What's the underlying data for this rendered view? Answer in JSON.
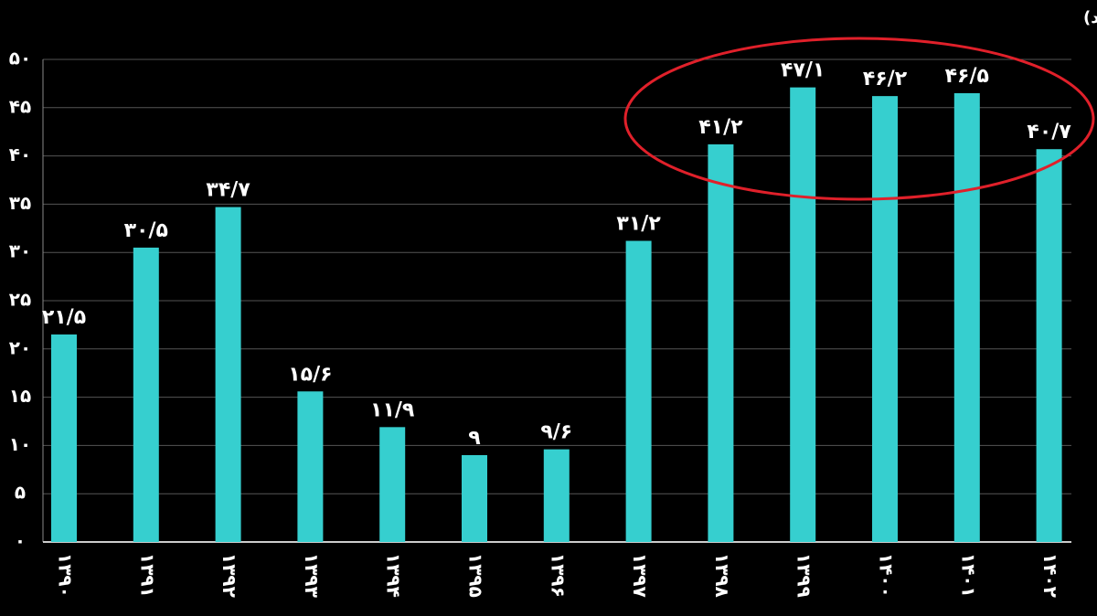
{
  "chart_data": {
    "type": "bar",
    "subtitle": "(واحد: درصد)",
    "categories": [
      "۱۳۹۰",
      "۱۳۹۱",
      "۱۳۹۲",
      "۱۳۹۳",
      "۱۳۹۴",
      "۱۳۹۵",
      "۱۳۹۶",
      "۱۳۹۷",
      "۱۳۹۸",
      "۱۳۹۹",
      "۱۴۰۰",
      "۱۴۰۱",
      "۱۴۰۲"
    ],
    "values": [
      21.5,
      30.5,
      34.7,
      15.6,
      11.9,
      9,
      9.6,
      31.2,
      41.2,
      47.1,
      46.2,
      46.5,
      40.7
    ],
    "value_labels": [
      "۲۱/۵",
      "۳۰/۵",
      "۳۴/۷",
      "۱۵/۶",
      "۱۱/۹",
      "۹",
      "۹/۶",
      "۳۱/۲",
      "۴۱/۲",
      "۴۷/۱",
      "۴۶/۲",
      "۴۶/۵",
      "۴۰/۷"
    ],
    "color": "#36cfcf",
    "ylim": [
      0,
      50
    ],
    "yticks": [
      {
        "value": 0,
        "label": "۰"
      },
      {
        "value": 5,
        "label": "۵"
      },
      {
        "value": 10,
        "label": "۱۰"
      },
      {
        "value": 15,
        "label": "۱۵"
      },
      {
        "value": 20,
        "label": "۲۰"
      },
      {
        "value": 25,
        "label": "۲۵"
      },
      {
        "value": 30,
        "label": "۳۰"
      },
      {
        "value": 35,
        "label": "۳۵"
      },
      {
        "value": 40,
        "label": "۴۰"
      },
      {
        "value": 45,
        "label": "۴۵"
      },
      {
        "value": 50,
        "label": "۵۰"
      }
    ],
    "grid": true
  }
}
